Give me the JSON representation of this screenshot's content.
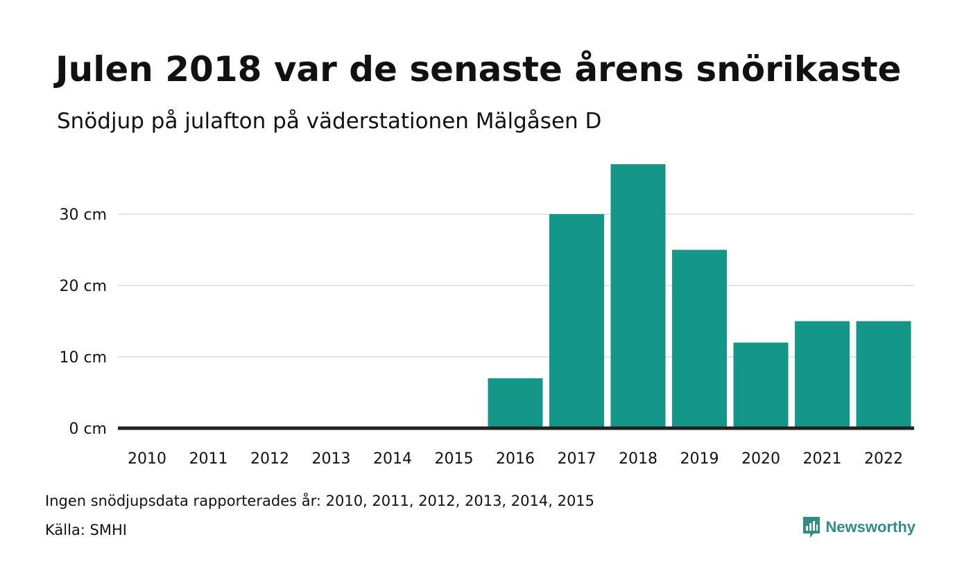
{
  "title": "Julen 2018 var de senaste årens snörikaste",
  "subtitle": "Snödjup på julafton på väderstationen Mälgåsen D",
  "footnote": "Ingen snödjupsdata rapporterades år: 2010, 2011, 2012, 2013, 2014, 2015",
  "source": "Källa: SMHI",
  "logo": {
    "text": "Newsworthy",
    "icon": "newsworthy-logo-icon"
  },
  "colors": {
    "bar": "#149689",
    "grid": "#e3e3e3",
    "baseline": "#222222",
    "brand": "#2f8f82"
  },
  "chart_data": {
    "type": "bar",
    "categories": [
      "2010",
      "2011",
      "2012",
      "2013",
      "2014",
      "2015",
      "2016",
      "2017",
      "2018",
      "2019",
      "2020",
      "2021",
      "2022"
    ],
    "values": [
      null,
      null,
      null,
      null,
      null,
      null,
      7,
      30,
      37,
      25,
      12,
      15,
      15
    ],
    "ylim": [
      0,
      37
    ],
    "yticks": [
      0,
      10,
      20,
      30
    ],
    "ytick_labels": [
      "0 cm",
      "10 cm",
      "20 cm",
      "30 cm"
    ],
    "xlabel": "",
    "ylabel": "",
    "grid": true
  }
}
